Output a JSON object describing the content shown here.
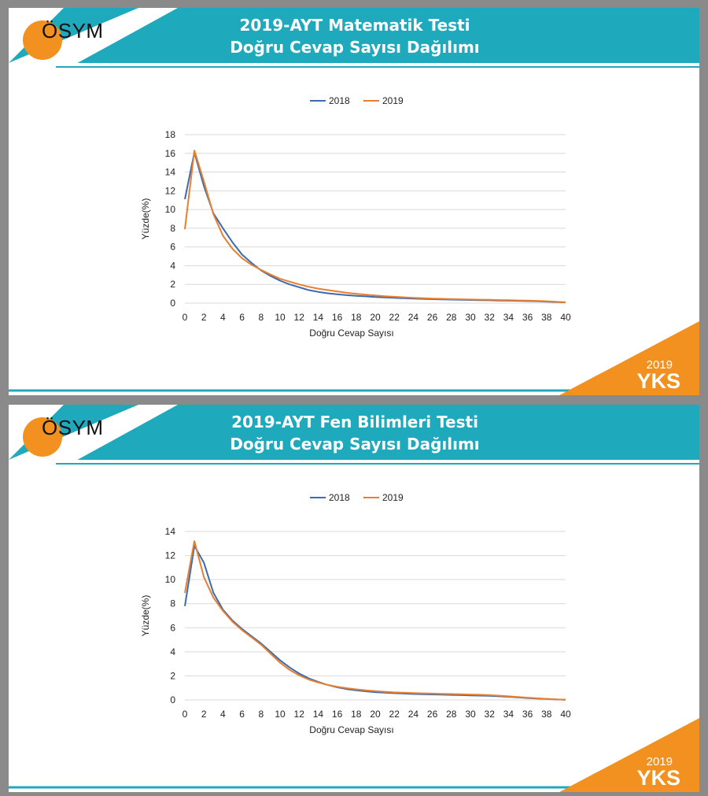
{
  "slides": [
    {
      "logo_text": "ÖSYM",
      "title_line1": "2019-AYT Matematik Testi",
      "title_line2": "Doğru Cevap Sayısı Dağılımı",
      "badge_year": "2019",
      "badge_name": "YKS"
    },
    {
      "logo_text": "ÖSYM",
      "title_line1": "2019-AYT Fen Bilimleri Testi",
      "title_line2": "Doğru Cevap Sayısı Dağılımı",
      "badge_year": "2019",
      "badge_name": "YKS"
    }
  ],
  "colors": {
    "teal": "#1fa9bd",
    "orange": "#f29120",
    "series_2018": "#3a6ab0",
    "series_2019": "#e87f2e",
    "gridline": "#d9d9d9"
  },
  "chart_data": [
    {
      "type": "line",
      "xlabel": "Doğru Cevap Sayısı",
      "ylabel": "Yüzde(%)",
      "xlim": [
        0,
        40
      ],
      "ylim": [
        0,
        18
      ],
      "yticks": [
        0,
        2,
        4,
        6,
        8,
        10,
        12,
        14,
        16,
        18
      ],
      "xticks": [
        0,
        2,
        4,
        6,
        8,
        10,
        12,
        14,
        16,
        18,
        20,
        22,
        24,
        26,
        28,
        30,
        32,
        34,
        36,
        38,
        40
      ],
      "grid": true,
      "legend": "top",
      "x": [
        0,
        1,
        2,
        3,
        4,
        5,
        6,
        7,
        8,
        9,
        10,
        11,
        12,
        13,
        14,
        15,
        16,
        17,
        18,
        19,
        20,
        21,
        22,
        23,
        24,
        25,
        26,
        27,
        28,
        29,
        30,
        31,
        32,
        33,
        34,
        35,
        36,
        37,
        38,
        39,
        40
      ],
      "series": [
        {
          "name": "2018",
          "values": [
            11.1,
            16.1,
            12.5,
            9.6,
            8.0,
            6.5,
            5.2,
            4.3,
            3.5,
            2.9,
            2.4,
            2.0,
            1.7,
            1.4,
            1.2,
            1.05,
            0.95,
            0.85,
            0.78,
            0.72,
            0.66,
            0.61,
            0.56,
            0.52,
            0.48,
            0.45,
            0.42,
            0.4,
            0.38,
            0.36,
            0.34,
            0.32,
            0.3,
            0.28,
            0.26,
            0.24,
            0.22,
            0.2,
            0.16,
            0.12,
            0.08
          ]
        },
        {
          "name": "2019",
          "values": [
            7.9,
            16.3,
            13.0,
            9.5,
            7.2,
            5.8,
            4.8,
            4.1,
            3.55,
            3.05,
            2.6,
            2.3,
            2.0,
            1.75,
            1.55,
            1.4,
            1.25,
            1.1,
            1.0,
            0.9,
            0.82,
            0.74,
            0.68,
            0.62,
            0.57,
            0.53,
            0.49,
            0.46,
            0.43,
            0.41,
            0.39,
            0.37,
            0.35,
            0.33,
            0.31,
            0.29,
            0.27,
            0.24,
            0.2,
            0.14,
            0.08
          ]
        }
      ]
    },
    {
      "type": "line",
      "xlabel": "Doğru Cevap Sayısı",
      "ylabel": "Yüzde(%)",
      "xlim": [
        0,
        40
      ],
      "ylim": [
        0,
        14
      ],
      "yticks": [
        0,
        2,
        4,
        6,
        8,
        10,
        12,
        14
      ],
      "xticks": [
        0,
        2,
        4,
        6,
        8,
        10,
        12,
        14,
        16,
        18,
        20,
        22,
        24,
        26,
        28,
        30,
        32,
        34,
        36,
        38,
        40
      ],
      "grid": true,
      "legend": "top",
      "x": [
        0,
        1,
        2,
        3,
        4,
        5,
        6,
        7,
        8,
        9,
        10,
        11,
        12,
        13,
        14,
        15,
        16,
        17,
        18,
        19,
        20,
        21,
        22,
        23,
        24,
        25,
        26,
        27,
        28,
        29,
        30,
        31,
        32,
        33,
        34,
        35,
        36,
        37,
        38,
        39,
        40
      ],
      "series": [
        {
          "name": "2018",
          "values": [
            7.8,
            12.8,
            11.4,
            8.9,
            7.5,
            6.6,
            5.9,
            5.3,
            4.7,
            4.0,
            3.3,
            2.7,
            2.2,
            1.8,
            1.5,
            1.25,
            1.05,
            0.9,
            0.8,
            0.72,
            0.65,
            0.6,
            0.56,
            0.53,
            0.5,
            0.48,
            0.46,
            0.44,
            0.42,
            0.4,
            0.38,
            0.36,
            0.34,
            0.3,
            0.26,
            0.21,
            0.16,
            0.12,
            0.08,
            0.04,
            0.02
          ]
        },
        {
          "name": "2019",
          "values": [
            8.9,
            13.2,
            10.2,
            8.5,
            7.4,
            6.5,
            5.8,
            5.2,
            4.6,
            3.85,
            3.1,
            2.5,
            2.05,
            1.7,
            1.45,
            1.25,
            1.1,
            0.98,
            0.88,
            0.8,
            0.74,
            0.68,
            0.63,
            0.6,
            0.57,
            0.55,
            0.53,
            0.51,
            0.49,
            0.47,
            0.45,
            0.43,
            0.4,
            0.35,
            0.3,
            0.25,
            0.19,
            0.14,
            0.09,
            0.05,
            0.02
          ]
        }
      ]
    }
  ]
}
